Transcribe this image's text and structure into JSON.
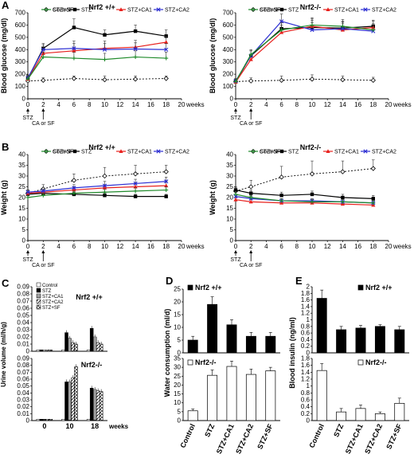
{
  "panels": {
    "A": "A",
    "B": "B",
    "C": "C",
    "D": "D",
    "E": "E"
  },
  "markers": {
    "stz": "STZ",
    "ca_sf": "CA or SF"
  },
  "colors": {
    "control": "#000000",
    "stz": "#000000",
    "stz_ca1": "#e8211d",
    "stz_ca2": "#2d2fd3",
    "stz_sf": "#1f8a2a"
  },
  "chart_data": [
    {
      "id": "A_left",
      "type": "line",
      "title": "Nrf2 +/+",
      "ylabel": "Blood glucose (mg/dl)",
      "xlabel": "weeks",
      "x_unit_label": "weeks",
      "x": [
        0,
        2,
        6,
        10,
        14,
        18
      ],
      "xlim": [
        0,
        20
      ],
      "ylim": [
        0,
        700
      ],
      "xticks": [
        "0",
        "2",
        "4",
        "6",
        "8",
        "10",
        "12",
        "14",
        "16",
        "18",
        "20"
      ],
      "yticks": [
        "0",
        "100",
        "200",
        "300",
        "400",
        "500",
        "600",
        "700"
      ],
      "legend": [
        "Control",
        "STZ",
        "STZ+CA1",
        "STZ+CA2",
        "STZ+SF"
      ],
      "series": [
        {
          "name": "Control",
          "values": [
            145,
            150,
            165,
            155,
            160,
            165
          ],
          "err": [
            15,
            20,
            20,
            30,
            25,
            20
          ],
          "dashed": true,
          "marker": "diamond-open"
        },
        {
          "name": "STZ",
          "values": [
            165,
            410,
            580,
            520,
            550,
            510
          ],
          "err": [
            25,
            40,
            70,
            40,
            50,
            50
          ],
          "marker": "square"
        },
        {
          "name": "STZ+CA1",
          "values": [
            160,
            370,
            390,
            410,
            420,
            460
          ],
          "err": [
            25,
            40,
            60,
            60,
            55,
            50
          ],
          "marker": "triangle"
        },
        {
          "name": "STZ+CA2",
          "values": [
            170,
            400,
            410,
            400,
            405,
            400
          ],
          "err": [
            25,
            40,
            60,
            50,
            50,
            50
          ],
          "marker": "x"
        },
        {
          "name": "STZ+SF",
          "values": [
            160,
            340,
            330,
            320,
            340,
            330
          ],
          "err": [
            25,
            40,
            50,
            50,
            50,
            50
          ],
          "marker": "plus"
        }
      ]
    },
    {
      "id": "A_right",
      "type": "line",
      "title": "Nrf2-/-",
      "ylabel": "Blood glucose (mg/dl)",
      "xlabel": "weeks",
      "x_unit_label": "weeks",
      "x": [
        0,
        2,
        6,
        10,
        14,
        18
      ],
      "xlim": [
        0,
        20
      ],
      "ylim": [
        0,
        700
      ],
      "xticks": [
        "0",
        "2",
        "4",
        "6",
        "8",
        "10",
        "12",
        "14",
        "16",
        "18",
        "20"
      ],
      "yticks": [
        "0",
        "100",
        "200",
        "300",
        "400",
        "500",
        "600",
        "700"
      ],
      "legend": [
        "Control",
        "STZ",
        "STZ+CA1",
        "STZ+CA2",
        "STZ+SF"
      ],
      "series": [
        {
          "name": "Control",
          "values": [
            140,
            145,
            150,
            160,
            155,
            150
          ],
          "err": [
            20,
            25,
            35,
            35,
            30,
            25
          ],
          "dashed": true,
          "marker": "diamond-open"
        },
        {
          "name": "STZ",
          "values": [
            140,
            350,
            570,
            580,
            575,
            590
          ],
          "err": [
            20,
            40,
            60,
            60,
            55,
            50
          ],
          "marker": "square"
        },
        {
          "name": "STZ+CA1",
          "values": [
            135,
            320,
            540,
            590,
            560,
            580
          ],
          "err": [
            20,
            40,
            60,
            60,
            55,
            50
          ],
          "marker": "triangle"
        },
        {
          "name": "STZ+CA2",
          "values": [
            145,
            350,
            630,
            560,
            570,
            550
          ],
          "err": [
            20,
            40,
            60,
            60,
            55,
            50
          ],
          "marker": "x"
        },
        {
          "name": "STZ+SF",
          "values": [
            140,
            360,
            560,
            600,
            590,
            560
          ],
          "err": [
            20,
            40,
            60,
            60,
            55,
            50
          ],
          "marker": "plus"
        }
      ]
    },
    {
      "id": "B_left",
      "type": "line",
      "title": "Nrf2 +/+",
      "ylabel": "Weight (g)",
      "xlabel": "weeks",
      "x_unit_label": "weeks",
      "x": [
        0,
        2,
        6,
        10,
        14,
        18
      ],
      "xlim": [
        0,
        20
      ],
      "ylim": [
        0,
        40
      ],
      "xticks": [
        "0",
        "2",
        "4",
        "6",
        "8",
        "10",
        "12",
        "14",
        "16",
        "18",
        "20"
      ],
      "yticks": [
        "0",
        "5",
        "10",
        "15",
        "20",
        "25",
        "30",
        "35",
        "40"
      ],
      "legend": [
        "Control",
        "STZ",
        "STZ+CA1",
        "STZ+CA2",
        "STZ+SF"
      ],
      "series": [
        {
          "name": "Control",
          "values": [
            22,
            24,
            28,
            30,
            31,
            32
          ],
          "err": [
            1.5,
            2,
            3,
            4,
            4,
            3
          ],
          "dashed": true,
          "marker": "diamond-open"
        },
        {
          "name": "STZ",
          "values": [
            21.5,
            22,
            21.5,
            21,
            20.5,
            20.5
          ],
          "err": [
            1,
            1,
            1,
            1,
            1,
            1
          ],
          "marker": "square"
        },
        {
          "name": "STZ+CA1",
          "values": [
            22,
            22.5,
            23.5,
            24.5,
            25,
            25.5
          ],
          "err": [
            1,
            1,
            1.5,
            1.5,
            2,
            2
          ],
          "marker": "triangle"
        },
        {
          "name": "STZ+CA2",
          "values": [
            22.5,
            23,
            24.5,
            25.5,
            26.5,
            27.5
          ],
          "err": [
            1,
            1,
            1.5,
            2,
            2,
            2
          ],
          "marker": "x"
        },
        {
          "name": "STZ+SF",
          "values": [
            20,
            21,
            22,
            22.5,
            23,
            23.5
          ],
          "err": [
            1,
            1,
            1,
            1.5,
            1.5,
            1.5
          ],
          "marker": "plus"
        }
      ]
    },
    {
      "id": "B_right",
      "type": "line",
      "title": "Nrf2-/-",
      "ylabel": "Weight (g)",
      "xlabel": "weeks",
      "x_unit_label": "weeks",
      "x": [
        0,
        2,
        6,
        10,
        14,
        18
      ],
      "xlim": [
        0,
        20
      ],
      "ylim": [
        0,
        40
      ],
      "xticks": [
        "0",
        "2",
        "4",
        "6",
        "8",
        "10",
        "12",
        "14",
        "16",
        "18",
        "20"
      ],
      "yticks": [
        "0",
        "5",
        "10",
        "15",
        "20",
        "25",
        "30",
        "35",
        "40"
      ],
      "legend": [
        "Control",
        "STZ",
        "STZ+CA1",
        "STZ+CA2",
        "STZ+SF"
      ],
      "series": [
        {
          "name": "Control",
          "values": [
            23,
            25,
            29.5,
            31,
            32,
            33.5
          ],
          "err": [
            1.5,
            3,
            5,
            6,
            5,
            4
          ],
          "dashed": true,
          "marker": "diamond-open"
        },
        {
          "name": "STZ",
          "values": [
            23.5,
            22,
            21,
            21.5,
            20,
            19.5
          ],
          "err": [
            1.5,
            1.5,
            1.5,
            1.5,
            1.5,
            1.5
          ],
          "marker": "square"
        },
        {
          "name": "STZ+CA1",
          "values": [
            19,
            18,
            17.5,
            17.5,
            17,
            16.5
          ],
          "err": [
            1,
            1,
            1,
            1,
            1,
            1
          ],
          "marker": "triangle"
        },
        {
          "name": "STZ+CA2",
          "values": [
            20.5,
            19.5,
            18.5,
            18.5,
            18,
            17.5
          ],
          "err": [
            1,
            1,
            1,
            1,
            1,
            1
          ],
          "marker": "x"
        },
        {
          "name": "STZ+SF",
          "values": [
            21.5,
            20,
            18.5,
            18,
            18,
            17.5
          ],
          "err": [
            1,
            1,
            1,
            1,
            1,
            1
          ],
          "marker": "plus"
        }
      ]
    },
    {
      "id": "C_top",
      "type": "bar",
      "title": "Nrf2 +/+",
      "ylabel": "Urine volume (ml/h/g)",
      "categories": [
        "0",
        "10",
        "18"
      ],
      "ylim": [
        0,
        0.09
      ],
      "yticks": [
        "0",
        "0.01",
        "0.02",
        "0.03",
        "0.04",
        "0.05",
        "0.06",
        "0.07",
        "0.08",
        "0.09"
      ],
      "legend": [
        "Control",
        "STZ",
        "STZ+CA1",
        "STZ+CA2",
        "STZ+SF"
      ],
      "series": [
        {
          "name": "Control",
          "values": [
            0.002,
            0.002,
            0.002
          ]
        },
        {
          "name": "STZ",
          "values": [
            0.002,
            0.026,
            0.032
          ]
        },
        {
          "name": "STZ+CA1",
          "values": [
            0.002,
            0.018,
            0.02
          ]
        },
        {
          "name": "STZ+CA2",
          "values": [
            0.002,
            0.012,
            0.012
          ]
        },
        {
          "name": "STZ+SF",
          "values": [
            0.002,
            0.01,
            0.01
          ]
        }
      ]
    },
    {
      "id": "C_bottom",
      "type": "bar",
      "title": "Nrf2-/-",
      "ylabel": "Urine volume (ml/h/g)",
      "xlabel": "weeks",
      "categories": [
        "0",
        "10",
        "18"
      ],
      "ylim": [
        0,
        0.09
      ],
      "yticks": [
        "0",
        "0.01",
        "0.02",
        "0.03",
        "0.04",
        "0.05",
        "0.06",
        "0.07",
        "0.08",
        "0.09"
      ],
      "series": [
        {
          "name": "Control",
          "values": [
            0.002,
            0.002,
            0.002
          ]
        },
        {
          "name": "STZ",
          "values": [
            0.002,
            0.056,
            0.047
          ]
        },
        {
          "name": "STZ+CA1",
          "values": [
            0.002,
            0.056,
            0.045
          ]
        },
        {
          "name": "STZ+CA2",
          "values": [
            0.002,
            0.062,
            0.043
          ]
        },
        {
          "name": "STZ+SF",
          "values": [
            0.002,
            0.078,
            0.042
          ]
        }
      ]
    },
    {
      "id": "D_top",
      "type": "bar",
      "title": "Nrf2 +/+",
      "ylabel": "Water consumption (ml/d)",
      "categories": [
        "Control",
        "STZ",
        "STZ+CA1",
        "STZ+CA2",
        "STZ+SF"
      ],
      "ylim": [
        0,
        25
      ],
      "yticks": [
        "0",
        "5",
        "10",
        "15",
        "20",
        "25"
      ],
      "values": [
        5,
        19,
        11,
        6.5,
        6.5
      ],
      "err": [
        1.5,
        3,
        2,
        1.5,
        1.5
      ]
    },
    {
      "id": "D_bottom",
      "type": "bar",
      "title": "Nrf2-/-",
      "ylabel": "Water consumption (ml/d)",
      "categories": [
        "Control",
        "STZ",
        "STZ+CA1",
        "STZ+CA2",
        "STZ+SF"
      ],
      "ylim": [
        0,
        35
      ],
      "yticks": [
        "0",
        "5",
        "10",
        "15",
        "20",
        "25",
        "30",
        "35"
      ],
      "values": [
        5.5,
        25.5,
        30.5,
        26,
        28
      ],
      "err": [
        1,
        3,
        3,
        3,
        2
      ]
    },
    {
      "id": "E_top",
      "type": "bar",
      "title": "Nrf2 +/+",
      "ylabel": "Blood insulin (ng/ml)",
      "categories": [
        "Control",
        "STZ",
        "STZ+CA1",
        "STZ+CA2",
        "STZ+SF"
      ],
      "ylim": [
        0,
        2
      ],
      "yticks": [
        "0",
        "0.2",
        "0.4",
        "0.6",
        "0.8",
        "1",
        "1.2",
        "1.4",
        "1.6",
        "1.8",
        "2"
      ],
      "values": [
        1.65,
        0.7,
        0.75,
        0.8,
        0.7
      ],
      "err": [
        0.25,
        0.1,
        0.08,
        0.05,
        0.1
      ]
    },
    {
      "id": "E_bottom",
      "type": "bar",
      "title": "Nrf2-/-",
      "ylabel": "Blood insulin (ng/ml)",
      "categories": [
        "Control",
        "STZ",
        "STZ+CA1",
        "STZ+CA2",
        "STZ+SF"
      ],
      "ylim": [
        0,
        1.8
      ],
      "yticks": [
        "0",
        "0.2",
        "0.4",
        "0.6",
        "0.8",
        "1",
        "1.2",
        "1.4",
        "1.6",
        "1.8"
      ],
      "values": [
        1.45,
        0.25,
        0.35,
        0.2,
        0.5
      ],
      "err": [
        0.2,
        0.1,
        0.1,
        0.05,
        0.15
      ]
    }
  ]
}
